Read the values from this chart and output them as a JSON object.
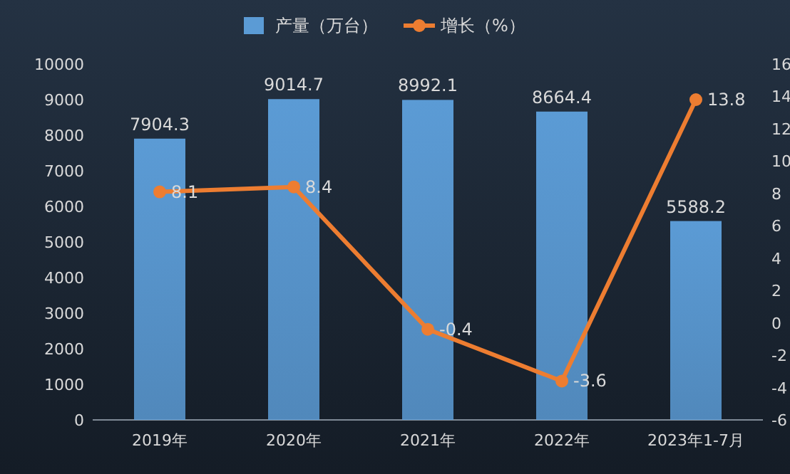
{
  "chart_data": {
    "type": "bar",
    "categories": [
      "2019年",
      "2020年",
      "2021年",
      "2022年",
      "2023年1-7月"
    ],
    "series": [
      {
        "name": "产量（万台）",
        "color": "#5b9bd5",
        "values": [
          7904.3,
          9014.7,
          8992.1,
          8664.4,
          5588.2
        ]
      },
      {
        "name": "增长（%）",
        "color": "#ed7d31",
        "type": "line",
        "axis": "y2",
        "marker": "circle",
        "values": [
          8.1,
          8.4,
          -0.4,
          -3.6,
          13.8
        ]
      }
    ],
    "ylim": [
      0,
      10000
    ],
    "yticks": [
      0,
      1000,
      2000,
      3000,
      4000,
      5000,
      6000,
      7000,
      8000,
      9000,
      10000
    ],
    "y2lim": [
      -6,
      16
    ],
    "y2ticks": [
      -6,
      -4,
      -2,
      0,
      2,
      4,
      6,
      8,
      10,
      12,
      14,
      16
    ],
    "data_labels": true,
    "legend": "top",
    "grid": false
  }
}
